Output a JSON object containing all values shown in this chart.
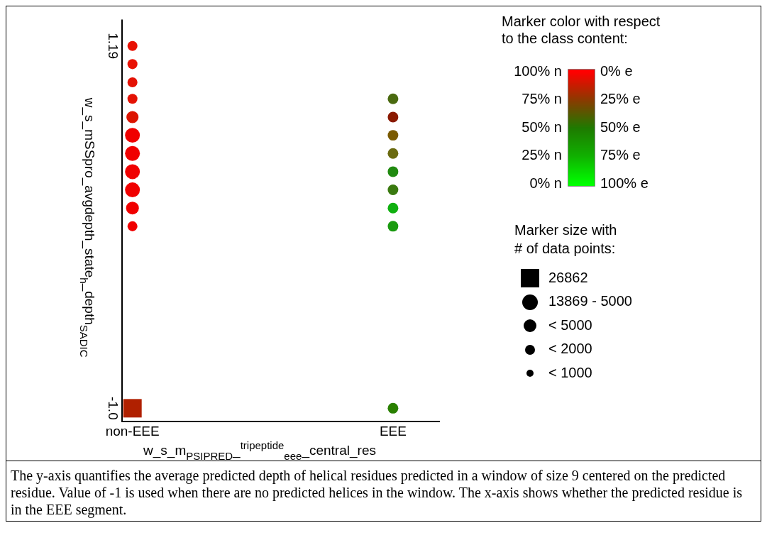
{
  "chart_data": {
    "type": "bubble",
    "categories": [
      "non-EEE",
      "EEE"
    ],
    "xlabel": "w_s_m$_{PSIPRED}$_$^{tripeptide}$$_{eee}$_central_res",
    "ylabel": "w_s_mSSpro_avgdepth_state$_{h}$_depth$_{SADIC}$",
    "ylim": [
      -1.08,
      1.35
    ],
    "yticks": [
      1.19,
      {
        "value": -1.0,
        "label": "-1.0"
      }
    ],
    "marker": "circle",
    "clabel": "Marker color with respect\nto the class content:",
    "clim": [
      0,
      100
    ],
    "cticks": [
      {
        "value": 100,
        "label": "100% n"
      },
      {
        "value": 75,
        "label": "75% n"
      },
      {
        "value": 50,
        "label": "50% n"
      },
      {
        "value": 25,
        "label": "25% n"
      },
      {
        "value": 0,
        "label": "0% n"
      }
    ],
    "legend_title": "Marker size with\n# of data points:",
    "series": [
      {
        "x": [
          "non-EEE",
          "non-EEE",
          "non-EEE",
          "non-EEE",
          "non-EEE",
          "non-EEE",
          "non-EEE",
          "non-EEE",
          "non-EEE",
          "non-EEE",
          "non-EEE"
        ],
        "values": [
          1.19,
          1.08,
          0.97,
          0.87,
          0.76,
          0.65,
          0.54,
          0.43,
          0.32,
          0.21,
          0.1
        ],
        "sizes": [
          0.23,
          0.23,
          0.23,
          0.23,
          0.34,
          0.51,
          0.51,
          0.51,
          0.51,
          0.38,
          0.23
        ],
        "colors": [
          "#e81204",
          "#e81204",
          "#e41204",
          "#e41204",
          "#dc1400",
          "#f00000",
          "#f00000",
          "#f00000",
          "#f00000",
          "#f00000",
          "#f00000"
        ]
      },
      {
        "x": [
          "non-EEE"
        ],
        "values": [
          -1.0
        ],
        "sizes": [
          1
        ],
        "colors": [
          "#b02000"
        ],
        "marker": "square"
      },
      {
        "x": [
          "EEE",
          "EEE",
          "EEE",
          "EEE",
          "EEE",
          "EEE",
          "EEE",
          "EEE",
          "EEE"
        ],
        "values": [
          0.87,
          0.76,
          0.65,
          0.54,
          0.43,
          0.32,
          0.21,
          0.1,
          -1.0
        ],
        "sizes": [
          0.26,
          0.26,
          0.26,
          0.26,
          0.26,
          0.26,
          0.26,
          0.26,
          0.26
        ],
        "colors": [
          "#4a6a10",
          "#8a1a00",
          "#7a5a00",
          "#6a6a10",
          "#208a10",
          "#3a7a10",
          "#10b010",
          "#1a9a10",
          "#2a8000"
        ]
      }
    ],
    "annotations": [
      "0% e",
      "25% e",
      "50% e",
      "75% e",
      "100% e",
      "26862",
      "13869 - 5000",
      "< 5000",
      "< 2000",
      "< 1000",
      "The y-axis quantifies the average predicted depth of helical residues predicted in a window of size 9 centered on the predicted residue. Value of -1 is used when there are no predicted helices in the window. The x-axis shows whether the predicted residue is in the EEE segment."
    ]
  }
}
